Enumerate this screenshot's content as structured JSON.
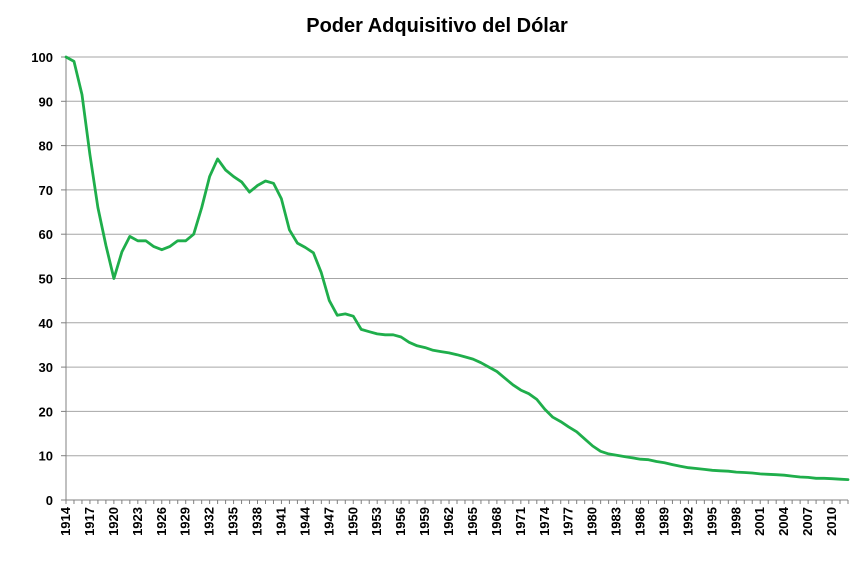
{
  "chart_data": {
    "type": "line",
    "title": "Poder Adquisitivo del Dólar",
    "xlabel": "",
    "ylabel": "",
    "ylim": [
      0,
      100
    ],
    "yticks": [
      0,
      10,
      20,
      30,
      40,
      50,
      60,
      70,
      80,
      90,
      100
    ],
    "xlim": [
      1914,
      2012
    ],
    "xticks": [
      1914,
      1917,
      1920,
      1923,
      1926,
      1929,
      1932,
      1935,
      1938,
      1941,
      1944,
      1947,
      1950,
      1953,
      1956,
      1959,
      1962,
      1965,
      1968,
      1971,
      1974,
      1977,
      1980,
      1983,
      1986,
      1989,
      1992,
      1995,
      1998,
      2001,
      2004,
      2007,
      2010
    ],
    "grid": "horizontal",
    "line_color": "#1fae4b",
    "grid_color": "#a6a6a6",
    "series": [
      {
        "x": [
          1914,
          1915,
          1916,
          1917,
          1918,
          1919,
          1920,
          1921,
          1922,
          1923,
          1924,
          1925,
          1926,
          1927,
          1928,
          1929,
          1930,
          1931,
          1932,
          1933,
          1934,
          1935,
          1936,
          1937,
          1938,
          1939,
          1940,
          1941,
          1942,
          1943,
          1944,
          1945,
          1946,
          1947,
          1948,
          1949,
          1950,
          1951,
          1952,
          1953,
          1954,
          1955,
          1956,
          1957,
          1958,
          1959,
          1960,
          1961,
          1962,
          1963,
          1964,
          1965,
          1966,
          1967,
          1968,
          1969,
          1970,
          1971,
          1972,
          1973,
          1974,
          1975,
          1976,
          1977,
          1978,
          1979,
          1980,
          1981,
          1982,
          1983,
          1984,
          1985,
          1986,
          1987,
          1988,
          1989,
          1990,
          1991,
          1992,
          1993,
          1994,
          1995,
          1996,
          1997,
          1998,
          1999,
          2000,
          2001,
          2002,
          2003,
          2004,
          2005,
          2006,
          2007,
          2008,
          2009,
          2010,
          2011,
          2012
        ],
        "values": [
          100,
          99,
          91.5,
          78,
          66,
          57.5,
          50,
          56,
          59.5,
          58.5,
          58.5,
          57.2,
          56.5,
          57.2,
          58.5,
          58.5,
          60,
          66,
          73,
          77,
          74.5,
          73,
          71.8,
          69.5,
          71,
          72,
          71.5,
          68,
          61,
          58,
          57,
          55.8,
          51.3,
          45,
          41.7,
          42,
          41.5,
          38.5,
          38,
          37.5,
          37.3,
          37.3,
          36.8,
          35.6,
          34.8,
          34.4,
          33.8,
          33.5,
          33.2,
          32.8,
          32.3,
          31.8,
          31,
          30,
          29,
          27.5,
          26,
          24.8,
          24,
          22.7,
          20.5,
          18.7,
          17.7,
          16.5,
          15.4,
          13.8,
          12.2,
          11,
          10.4,
          10.1,
          9.8,
          9.5,
          9.2,
          9.1,
          8.7,
          8.4,
          8,
          7.6,
          7.3,
          7.1,
          6.9,
          6.7,
          6.6,
          6.5,
          6.3,
          6.2,
          6.1,
          5.9,
          5.8,
          5.7,
          5.6,
          5.4,
          5.2,
          5.1,
          4.9,
          4.9,
          4.8,
          4.7,
          4.6
        ]
      }
    ]
  }
}
